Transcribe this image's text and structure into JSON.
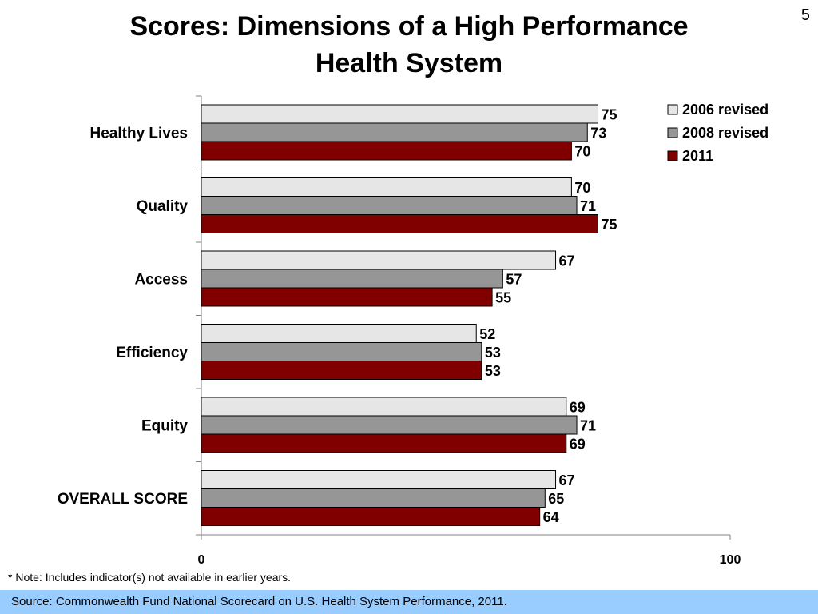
{
  "page_number": "5",
  "title_lines": [
    "Scores: Dimensions of a High Performance",
    "Health System"
  ],
  "note": "* Note: Includes indicator(s) not available in earlier years.",
  "source": "Source: Commonwealth Fund National Scorecard on U.S. Health System Performance, 2011.",
  "colors": {
    "series_2006": "#e6e6e6",
    "series_2008": "#969696",
    "series_2011": "#800000",
    "source_bar": "#99ccff"
  },
  "chart_data": {
    "type": "bar",
    "orientation": "horizontal",
    "categories": [
      "Healthy Lives",
      "Quality",
      "Access",
      "Efficiency",
      "Equity",
      "OVERALL SCORE"
    ],
    "series": [
      {
        "name": "2006 revised",
        "values": [
          75,
          70,
          67,
          52,
          69,
          67
        ]
      },
      {
        "name": "2008 revised",
        "values": [
          73,
          71,
          57,
          53,
          71,
          65
        ]
      },
      {
        "name": "2011",
        "values": [
          70,
          75,
          55,
          53,
          69,
          64
        ]
      }
    ],
    "xlim": [
      0,
      100
    ],
    "xticks": [
      "0",
      "100"
    ],
    "data_labels": true,
    "legend_position": "top-right",
    "grid": false
  }
}
